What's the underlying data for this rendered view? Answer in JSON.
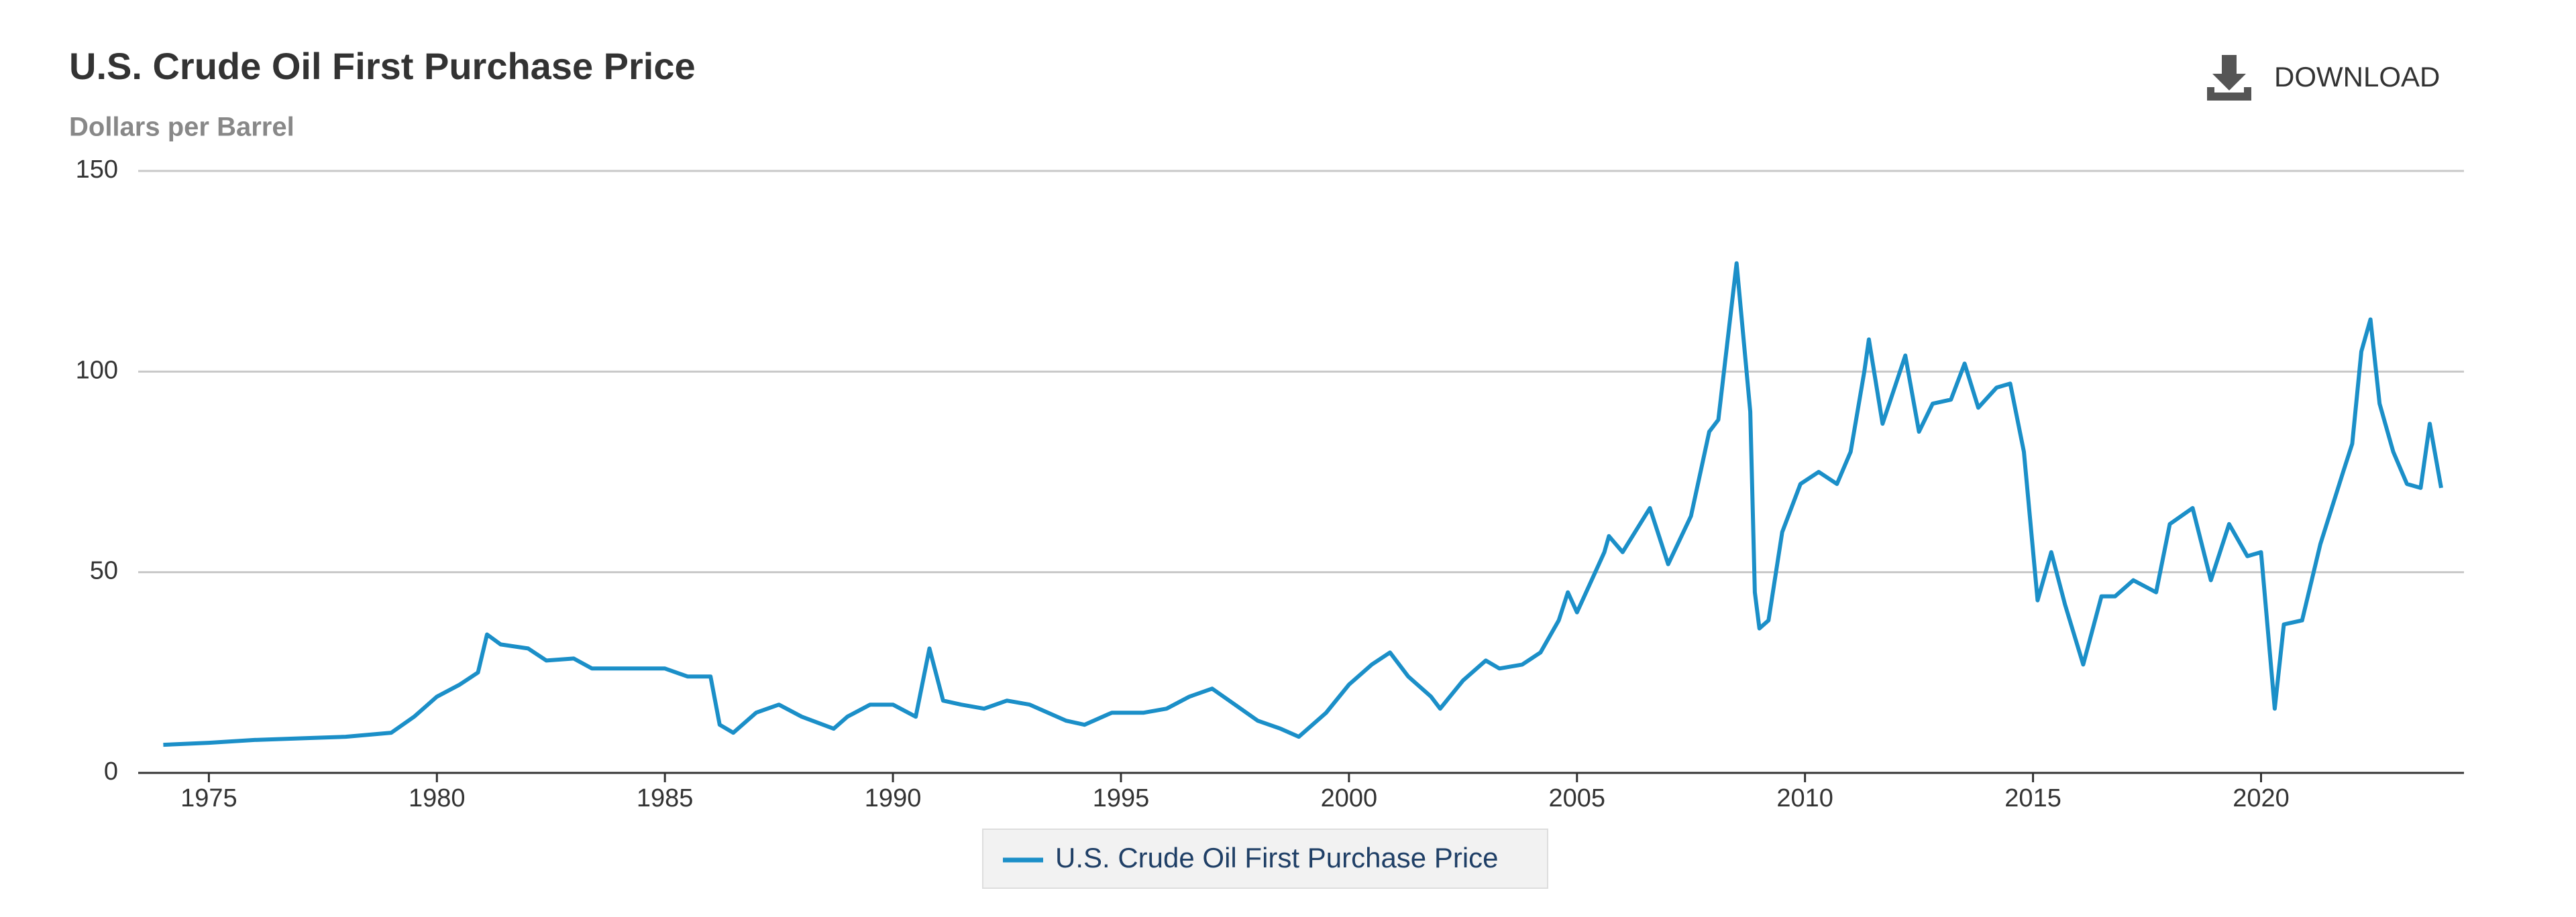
{
  "chart_data": {
    "type": "line",
    "title": "U.S. Crude Oil First Purchase Price",
    "subtitle": "Dollars per Barrel",
    "download_label": "DOWNLOAD",
    "x": [
      1974.0,
      1975.0,
      1976.0,
      1977.0,
      1978.0,
      1979.0,
      1979.5,
      1980.0,
      1980.5,
      1980.9,
      1981.1,
      1981.4,
      1982.0,
      1982.4,
      1983.0,
      1983.4,
      1984.0,
      1985.0,
      1985.5,
      1986.0,
      1986.2,
      1986.5,
      1987.0,
      1987.5,
      1988.0,
      1988.7,
      1989.0,
      1989.5,
      1990.0,
      1990.5,
      1990.8,
      1991.1,
      1991.5,
      1992.0,
      1992.5,
      1993.0,
      1993.8,
      1994.2,
      1994.8,
      1995.5,
      1996.0,
      1996.5,
      1997.0,
      1997.5,
      1998.0,
      1998.5,
      1998.9,
      1999.5,
      2000.0,
      2000.5,
      2000.9,
      2001.3,
      2001.8,
      2002.0,
      2002.5,
      2003.0,
      2003.3,
      2003.8,
      2004.2,
      2004.6,
      2004.8,
      2005.0,
      2005.6,
      2005.7,
      2006.0,
      2006.6,
      2007.0,
      2007.5,
      2007.9,
      2008.1,
      2008.5,
      2008.8,
      2008.9,
      2009.0,
      2009.2,
      2009.5,
      2009.9,
      2010.3,
      2010.7,
      2011.0,
      2011.3,
      2011.4,
      2011.7,
      2012.2,
      2012.5,
      2012.8,
      2013.2,
      2013.5,
      2013.8,
      2014.2,
      2014.5,
      2014.8,
      2015.1,
      2015.4,
      2015.7,
      2016.1,
      2016.5,
      2016.8,
      2017.2,
      2017.7,
      2018.0,
      2018.5,
      2018.9,
      2019.3,
      2019.7,
      2020.0,
      2020.3,
      2020.5,
      2020.9,
      2021.3,
      2021.8,
      2022.0,
      2022.2,
      2022.4,
      2022.6,
      2022.9,
      2023.2,
      2023.5,
      2023.7,
      2023.95
    ],
    "series": [
      {
        "name": "U.S. Crude Oil First Purchase Price",
        "color": "#1b8fc8",
        "values": [
          7,
          7.5,
          8.2,
          8.6,
          9,
          10,
          14,
          19,
          22,
          25,
          34.5,
          32,
          31,
          28,
          28.5,
          26,
          26,
          26,
          24,
          24,
          12,
          10,
          15,
          17,
          14,
          11,
          14,
          17,
          17,
          14,
          31,
          18,
          17,
          16,
          18,
          17,
          13,
          12,
          15,
          15,
          16,
          19,
          21,
          17,
          13,
          11,
          9,
          15,
          22,
          27,
          30,
          24,
          19,
          16,
          23,
          28,
          26,
          27,
          30,
          38,
          45,
          40,
          55,
          59,
          55,
          66,
          52,
          64,
          85,
          88,
          127,
          90,
          45,
          36,
          38,
          60,
          72,
          75,
          72,
          80,
          100,
          108,
          87,
          104,
          85,
          92,
          93,
          102,
          91,
          96,
          97,
          80,
          43,
          55,
          42,
          27,
          44,
          44,
          48,
          45,
          62,
          66,
          48,
          62,
          54,
          55,
          16,
          37,
          38,
          57,
          75,
          82,
          105,
          113,
          92,
          80,
          72,
          71,
          87,
          71
        ]
      }
    ],
    "xlim": [
      1973.45,
      2024.45
    ],
    "xticks": [
      1975,
      1980,
      1985,
      1990,
      1995,
      2000,
      2005,
      2010,
      2015,
      2020
    ],
    "ylim": [
      0,
      150
    ],
    "yticks": [
      0,
      50,
      100,
      150
    ],
    "grid": true
  }
}
